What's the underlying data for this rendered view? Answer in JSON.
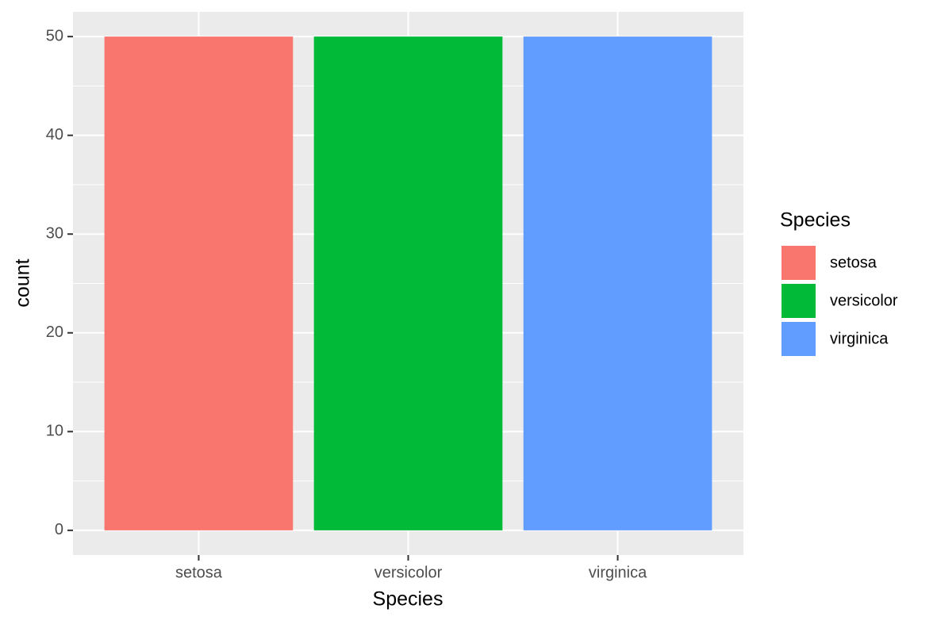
{
  "chart_data": {
    "type": "bar",
    "categories": [
      "setosa",
      "versicolor",
      "virginica"
    ],
    "values": [
      50,
      50,
      50
    ],
    "colors": [
      "#f8766d",
      "#00ba38",
      "#619cff"
    ],
    "x_label": "Species",
    "y_label": "count",
    "legend_title": "Species",
    "legend_position": "right",
    "ylim": [
      -2.5,
      52.5
    ],
    "yticks": [
      0,
      10,
      20,
      30,
      40,
      50
    ],
    "grid": true
  }
}
